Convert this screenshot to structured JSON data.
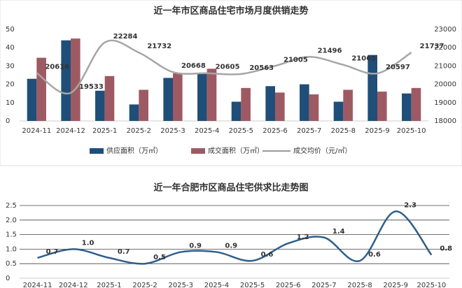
{
  "chart_data": [
    {
      "type": "bar",
      "title": "近一年市区商品住宅市场月度供销走势",
      "categories": [
        "2024-11",
        "2024-12",
        "2025-1",
        "2025-2",
        "2025-3",
        "2025-4",
        "2025-5",
        "2025-6",
        "2025-7",
        "2025-8",
        "2025-9",
        "2025-10"
      ],
      "series": [
        {
          "name": "供应面积（万㎡）",
          "color": "#1f4e79",
          "values": [
            23,
            44,
            16.5,
            9,
            23.5,
            26,
            10.5,
            19,
            20,
            10.5,
            36,
            15
          ]
        },
        {
          "name": "成交面积（万㎡）",
          "color": "#9e5a63",
          "values": [
            34.5,
            45,
            24.5,
            17,
            26,
            28.5,
            18,
            15.5,
            14.5,
            17,
            16,
            18
          ]
        },
        {
          "name": "成交均价（元/㎡）",
          "color": "#a6a6a6",
          "type": "line",
          "axis": "y2",
          "values": [
            20616,
            19533,
            22284,
            21732,
            20668,
            20605,
            20563,
            21005,
            21496,
            21065,
            20597,
            21737
          ]
        }
      ],
      "ylim": [
        0,
        50
      ],
      "yticks": [
        0,
        10,
        20,
        30,
        40,
        50
      ],
      "y2lim": [
        18000,
        23000
      ],
      "y2ticks": [
        18000,
        19000,
        20000,
        21000,
        22000,
        23000
      ],
      "grid": false,
      "legend": "bottom"
    },
    {
      "type": "line",
      "title": "近一年合肥市区商品住宅供求比走势图",
      "categories": [
        "2024-11",
        "2024-12",
        "2025-1",
        "2025-2",
        "2025-3",
        "2025-4",
        "2025-5",
        "2025-6",
        "2025-7",
        "2025-8",
        "2025-9",
        "2025-10"
      ],
      "values": [
        0.7,
        1.0,
        0.7,
        0.5,
        0.9,
        0.9,
        0.6,
        1.2,
        1.4,
        0.6,
        2.3,
        0.8
      ],
      "value_labels": [
        "0.7",
        "1.0",
        "0.7",
        "0.5",
        "0.9",
        "0.9",
        "0.6",
        "1.2",
        "1.4",
        "0.6",
        "2.3",
        "0.8"
      ],
      "color": "#2e5f8a",
      "ylim": [
        0,
        2.5
      ],
      "yticks": [
        0,
        0.5,
        {
          "value": 1,
          "label": "1.0"
        },
        1.5,
        {
          "value": 2,
          "label": "2.0"
        },
        2.5
      ],
      "grid": true
    }
  ]
}
